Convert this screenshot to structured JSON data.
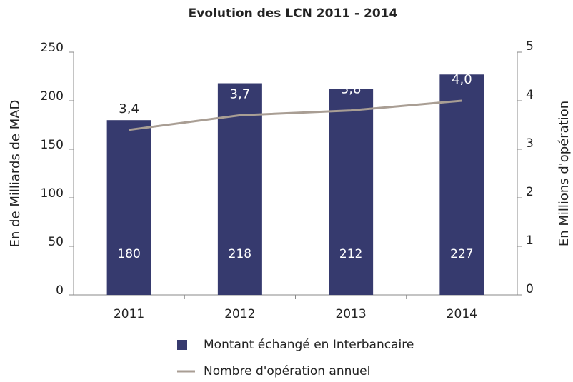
{
  "chart_data": {
    "type": "bar",
    "title": "Evolution des LCN 2011 - 2014",
    "categories": [
      "2011",
      "2012",
      "2013",
      "2014"
    ],
    "series": [
      {
        "name": "Montant échangé en Interbancaire",
        "color": "#363a6e",
        "values": [
          180,
          218,
          212,
          227
        ]
      },
      {
        "name": "Nombre d'opération annuel",
        "color": "#a99e94",
        "axis": "y2",
        "type": "line",
        "values": [
          3.4,
          3.7,
          3.8,
          4.0
        ],
        "value_labels": [
          "3,4",
          "3,7",
          "3,8",
          "4,0"
        ]
      }
    ],
    "ylabel": "En de Milliards de MAD",
    "y2label": "En Millions d'opération",
    "ylim": [
      0,
      250
    ],
    "yticks": [
      0,
      50,
      100,
      150,
      200,
      250
    ],
    "y2lim": [
      0,
      5
    ],
    "y2ticks": [
      0,
      1,
      2,
      3,
      4,
      5
    ],
    "legend": "bottom"
  }
}
